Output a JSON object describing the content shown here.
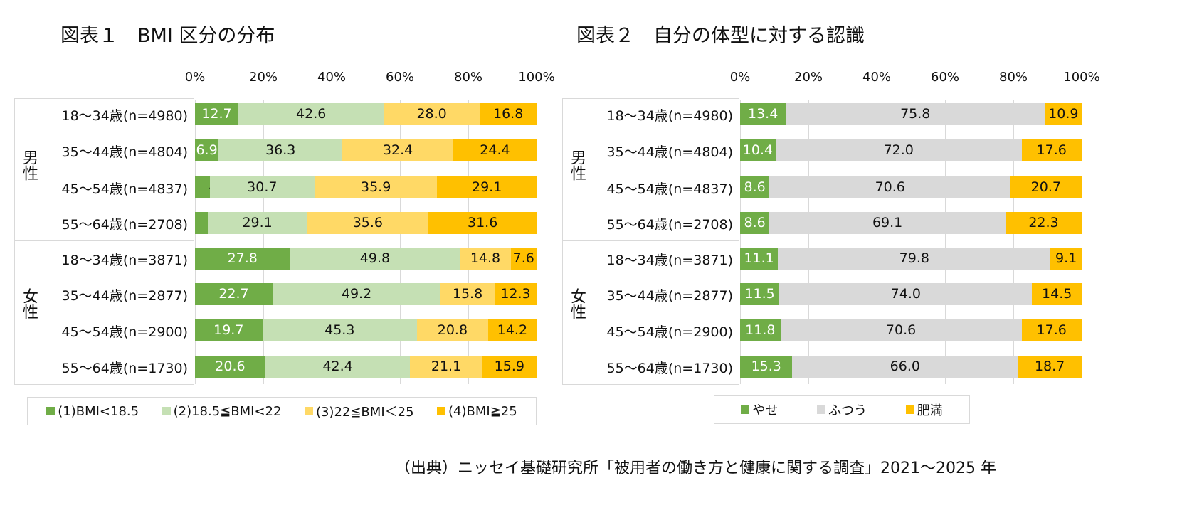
{
  "source": "（出典）ニッセイ基礎研究所「被用者の働き方と健康に関する調査」2021～2025 年",
  "chart_data": [
    {
      "type": "bar",
      "orientation": "horizontal-stacked-100",
      "title": "図表１　BMI 区分の分布",
      "groups": [
        "男性",
        "女性"
      ],
      "categories": [
        "18～34歳(n=4980)",
        "35～44歳(n=4804)",
        "45～54歳(n=4837)",
        "55～64歳(n=2708)",
        "18～34歳(n=3871)",
        "35～44歳(n=2877)",
        "45～54歳(n=2900)",
        "55～64歳(n=1730)"
      ],
      "xticks": [
        "0%",
        "20%",
        "40%",
        "60%",
        "80%",
        "100%"
      ],
      "xlim": [
        0,
        100
      ],
      "grid": true,
      "legend": "bottom",
      "series": [
        {
          "name": "(1)BMI<18.5",
          "color": "#70AD47",
          "label_color": "#ffffff",
          "values": [
            12.7,
            6.9,
            4.3,
            3.7,
            27.8,
            22.7,
            19.7,
            20.6
          ]
        },
        {
          "name": "(2)18.5≦BMI<22",
          "color": "#C5E0B4",
          "label_color": "#111111",
          "values": [
            42.6,
            36.3,
            30.7,
            29.1,
            49.8,
            49.2,
            45.3,
            42.4
          ]
        },
        {
          "name": "(3)22≦BMI＜25",
          "color": "#FFD966",
          "label_color": "#111111",
          "values": [
            28.0,
            32.4,
            35.9,
            35.6,
            14.8,
            15.8,
            20.8,
            21.1
          ]
        },
        {
          "name": "(4)BMI≧25",
          "color": "#FFC000",
          "label_color": "#111111",
          "values": [
            16.8,
            24.4,
            29.1,
            31.6,
            7.6,
            12.3,
            14.2,
            15.9
          ]
        }
      ]
    },
    {
      "type": "bar",
      "orientation": "horizontal-stacked-100",
      "title": "図表２　自分の体型に対する認識",
      "groups": [
        "男性",
        "女性"
      ],
      "categories": [
        "18～34歳(n=4980)",
        "35～44歳(n=4804)",
        "45～54歳(n=4837)",
        "55～64歳(n=2708)",
        "18～34歳(n=3871)",
        "35～44歳(n=2877)",
        "45～54歳(n=2900)",
        "55～64歳(n=1730)"
      ],
      "xticks": [
        "0%",
        "20%",
        "40%",
        "60%",
        "80%",
        "100%"
      ],
      "xlim": [
        0,
        100
      ],
      "grid": true,
      "legend": "bottom",
      "series": [
        {
          "name": "やせ",
          "color": "#70AD47",
          "label_color": "#ffffff",
          "values": [
            13.4,
            10.4,
            8.6,
            8.6,
            11.1,
            11.5,
            11.8,
            15.3
          ]
        },
        {
          "name": "ふつう",
          "color": "#D9D9D9",
          "label_color": "#111111",
          "values": [
            75.8,
            72.0,
            70.6,
            69.1,
            79.8,
            74.0,
            70.6,
            66.0
          ]
        },
        {
          "name": "肥満",
          "color": "#FFC000",
          "label_color": "#111111",
          "values": [
            10.9,
            17.6,
            20.7,
            22.3,
            9.1,
            14.5,
            17.6,
            18.7
          ]
        }
      ]
    }
  ]
}
